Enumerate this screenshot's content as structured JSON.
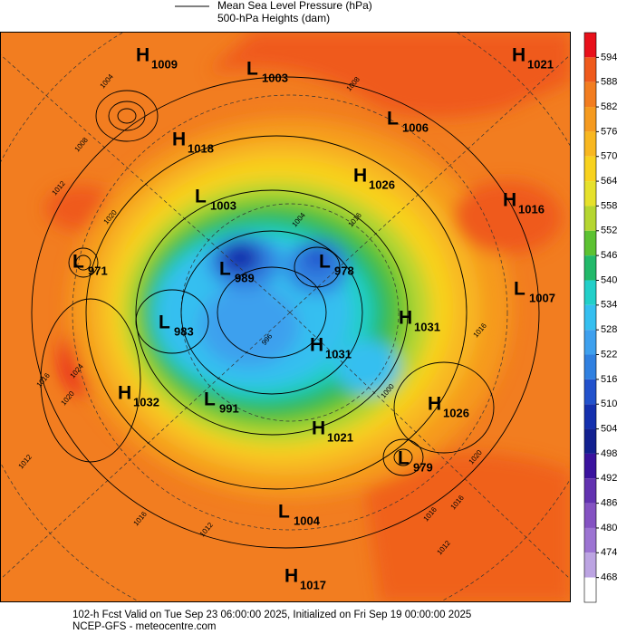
{
  "legend": [
    "Mean Sea Level Pressure (hPa)",
    "500-hPa Heights (dam)"
  ],
  "centers": [
    {
      "type": "H",
      "value": 1009
    },
    {
      "type": "L",
      "value": 1003
    },
    {
      "type": "H",
      "value": 1021
    },
    {
      "type": "L",
      "value": 1006
    },
    {
      "type": "H",
      "value": 1018
    },
    {
      "type": "H",
      "value": 1026
    },
    {
      "type": "L",
      "value": 1003
    },
    {
      "type": "H",
      "value": 1016
    },
    {
      "type": "L",
      "value": 971
    },
    {
      "type": "L",
      "value": 978
    },
    {
      "type": "L",
      "value": 989
    },
    {
      "type": "L",
      "value": 1007
    },
    {
      "type": "L",
      "value": 983
    },
    {
      "type": "H",
      "value": 1031
    },
    {
      "type": "H",
      "value": 1031
    },
    {
      "type": "H",
      "value": 1032
    },
    {
      "type": "L",
      "value": 991
    },
    {
      "type": "H",
      "value": 1026
    },
    {
      "type": "H",
      "value": 1021
    },
    {
      "type": "L",
      "value": 979
    },
    {
      "type": "L",
      "value": 1004
    },
    {
      "type": "H",
      "value": 1017
    }
  ],
  "isobar_labels": [
    1004,
    1008,
    1012,
    1020,
    1004,
    1016,
    1016,
    1024,
    1016,
    1020,
    1012,
    1020,
    1016,
    1016,
    1012,
    1016,
    1012,
    1008,
    996,
    1000
  ],
  "colorbar": {
    "ticks": [
      594,
      588,
      582,
      576,
      570,
      564,
      558,
      552,
      546,
      540,
      534,
      528,
      522,
      516,
      510,
      504,
      498,
      492,
      486,
      480,
      474,
      468
    ],
    "colors": [
      "#e8101a",
      "#ef5a1c",
      "#f27d20",
      "#f59a1f",
      "#f8b720",
      "#f8d21e",
      "#e6e12c",
      "#b5d631",
      "#5cc232",
      "#22b96a",
      "#22cfc9",
      "#35bff0",
      "#3ea0ee",
      "#3080e0",
      "#2252cc",
      "#1430ae",
      "#122090",
      "#3a129e",
      "#6232b0",
      "#8452c2",
      "#9c74d2",
      "#bca4e2",
      "#ffffff"
    ]
  },
  "footer": [
    "102-h Fcst Valid on Tue Sep 23 06:00:00 2025, Initialized on Fri Sep 19 00:00:00 2025",
    "NCEP-GFS - meteocentre.com"
  ]
}
